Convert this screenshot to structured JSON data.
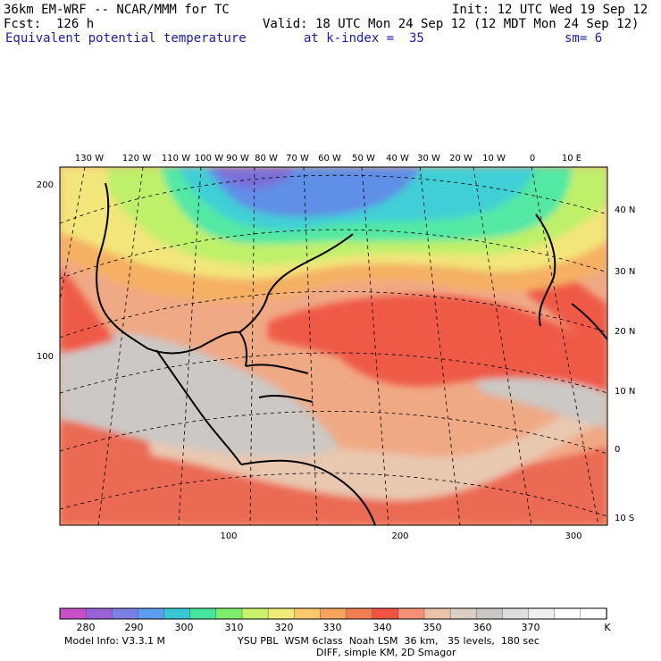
{
  "header": {
    "model": "36km EM-WRF -- NCAR/MMM for TC",
    "init": "Init: 12 UTC Wed 19 Sep 12",
    "forecast": "Fcst:  126 h",
    "valid": "Valid: 18 UTC Mon 24 Sep 12 (12 MDT Mon 24 Sep 12)",
    "field": "Equivalent potential temperature",
    "kindex": "at k-index =  35",
    "smooth": "sm= 6"
  },
  "map": {
    "top_lon_labels": [
      "130 W",
      "120 W",
      "110 W",
      "100 W",
      "90 W",
      "80 W",
      "70 W",
      "60 W",
      "50 W",
      "40 W",
      "30 W",
      "20 W",
      "10 W",
      "0",
      "10 E"
    ],
    "right_lat_labels": [
      "40 N",
      "30 N",
      "20 N",
      "10 N",
      "0",
      "10 S"
    ],
    "left_grid_labels": [
      "200",
      "100"
    ],
    "bottom_grid_labels": [
      "100",
      "200",
      "300"
    ]
  },
  "colorbar": {
    "labels": [
      "280",
      "290",
      "300",
      "310",
      "320",
      "330",
      "340",
      "350",
      "360",
      "370"
    ],
    "unit": "K",
    "colors": [
      "#c84fc9",
      "#9a62d6",
      "#7b7fe6",
      "#5f9df0",
      "#38c6d2",
      "#43e69b",
      "#7cef6a",
      "#c9f36a",
      "#f0ec77",
      "#f9c96a",
      "#f6a35b",
      "#f37d52",
      "#ef5440",
      "#f59078",
      "#eac3a9",
      "#d9cfc2",
      "#c9c8c5",
      "#dedede",
      "#efefef",
      "#ffffff",
      "#ffffff"
    ]
  },
  "footer": {
    "line1_left": "Model Info: V3.3.1 M",
    "line1_right": "YSU PBL  WSM 6class  Noah LSM  36 km,   35 levels,  180 sec",
    "line2": "DIFF, simple KM, 2D Smagor"
  }
}
